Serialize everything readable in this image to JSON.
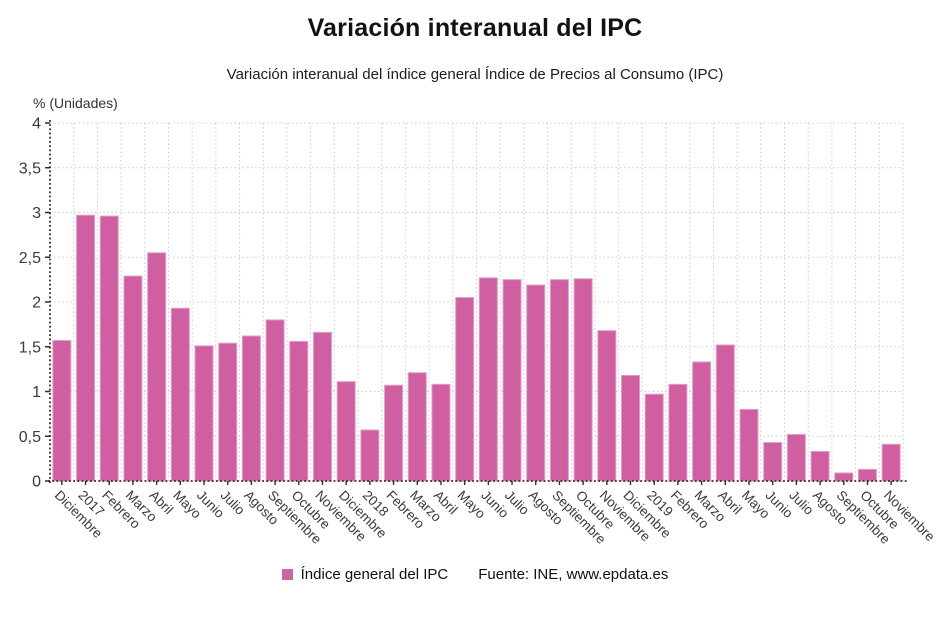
{
  "chart_data": {
    "type": "bar",
    "title": "Variación interanual del IPC",
    "subtitle": "Variación interanual del índice general Índice de Precios al Consumo (IPC)",
    "ylabel": "% (Unidades)",
    "xlabel": "",
    "categories": [
      "Diciembre",
      "2017",
      "Febrero",
      "Marzo",
      "Abril",
      "Mayo",
      "Junio",
      "Julio",
      "Agosto",
      "Septiembre",
      "Octubre",
      "Noviembre",
      "Diciembre",
      "2018",
      "Febrero",
      "Marzo",
      "Abril",
      "Mayo",
      "Junio",
      "Julio",
      "Agosto",
      "Septiembre",
      "Octubre",
      "Noviembre",
      "Diciembre",
      "2019",
      "Febrero",
      "Marzo",
      "Abril",
      "Mayo",
      "Junio",
      "Julio",
      "Agosto",
      "Septiembre",
      "Octubre",
      "Noviembre"
    ],
    "values": [
      1.57,
      2.97,
      2.96,
      2.29,
      2.55,
      1.93,
      1.51,
      1.54,
      1.62,
      1.8,
      1.56,
      1.66,
      1.11,
      0.57,
      1.07,
      1.21,
      1.08,
      2.05,
      2.27,
      2.25,
      2.19,
      2.25,
      2.26,
      1.68,
      1.18,
      0.97,
      1.08,
      1.33,
      1.52,
      0.8,
      0.43,
      0.52,
      0.33,
      0.09,
      0.13,
      0.41
    ],
    "ylim": [
      0,
      4
    ],
    "ytick_step": 0.5,
    "ytick_labels": [
      "0",
      "0,5",
      "1",
      "1,5",
      "2",
      "2,5",
      "3",
      "3,5",
      "4"
    ],
    "grid": true,
    "legend_position": "bottom",
    "legend_label": "Índice general del IPC",
    "source": "Fuente: INE, www.epdata.es",
    "bar_color": "#cf5fa0",
    "bar_edge_color": "#e29fc8",
    "legend_swatch_color": "#c9679f",
    "grid_color": "#cbcbcb",
    "axis_color": "#2e2e2e",
    "tick_label_color": "#3a3a3a"
  }
}
